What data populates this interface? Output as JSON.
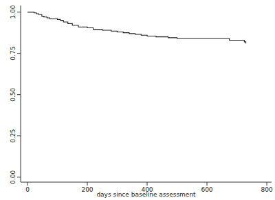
{
  "chart_data": {
    "type": "line",
    "line_style": "step",
    "color": "#1a1a1a",
    "x_label": "days since baseline assessment",
    "x": [
      0,
      22,
      30,
      38,
      48,
      55,
      65,
      75,
      100,
      110,
      120,
      135,
      150,
      170,
      200,
      220,
      250,
      280,
      300,
      320,
      340,
      360,
      380,
      400,
      430,
      470,
      500,
      675,
      725,
      730
    ],
    "values": [
      1.0,
      0.995,
      0.99,
      0.985,
      0.975,
      0.97,
      0.965,
      0.96,
      0.955,
      0.95,
      0.94,
      0.93,
      0.92,
      0.91,
      0.905,
      0.895,
      0.89,
      0.885,
      0.88,
      0.875,
      0.87,
      0.865,
      0.86,
      0.855,
      0.85,
      0.845,
      0.84,
      0.83,
      0.82,
      0.81
    ],
    "xlim": [
      -23,
      816
    ],
    "ylim": [
      -0.03,
      1.04
    ],
    "xticks": [
      0,
      200,
      400,
      600,
      800
    ],
    "yticks": [
      {
        "value": 0,
        "label": "0.00"
      },
      {
        "value": 0.25,
        "label": "0.25"
      },
      {
        "value": 0.5,
        "label": "0.50"
      },
      {
        "value": 0.75,
        "label": "0.75"
      },
      {
        "value": 1,
        "label": "1.00"
      }
    ],
    "grid": false
  }
}
